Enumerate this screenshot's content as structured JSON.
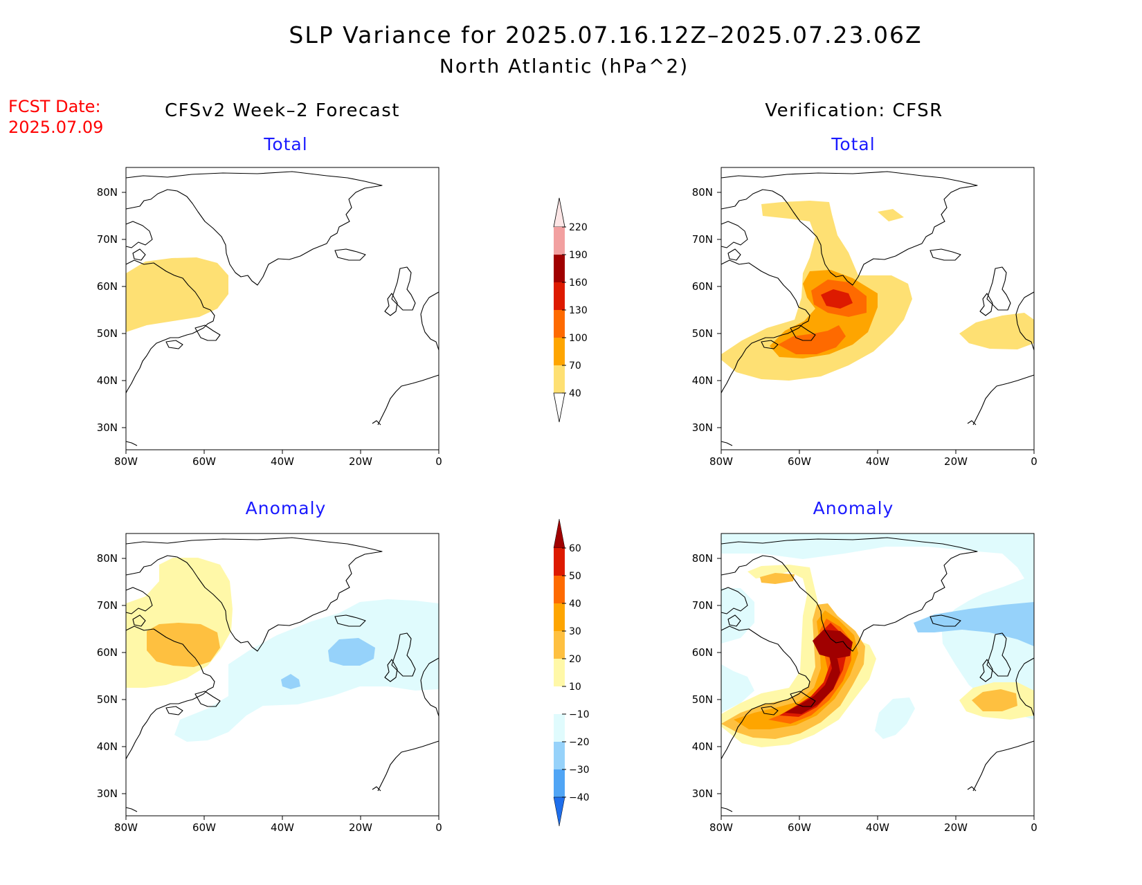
{
  "title_line1": "SLP Variance for 2025.07.16.12Z–2025.07.23.06Z",
  "title_line2": "North Atlantic (hPa^2)",
  "fcst_date_label": "FCST Date:",
  "fcst_date_value": "2025.07.09",
  "column_titles": {
    "left": "CFSv2 Week–2 Forecast",
    "right": "Verification: CFSR"
  },
  "panel_titles": {
    "total": "Total",
    "anomaly": "Anomaly"
  },
  "colors": {
    "title": "#000000",
    "fcst_date": "#ff0000",
    "panel_subtitle": "#1a1aff"
  },
  "axes": {
    "lat_labels": [
      "80N",
      "70N",
      "60N",
      "50N",
      "40N",
      "30N"
    ],
    "lon_labels": [
      "80W",
      "60W",
      "40W",
      "20W",
      "0"
    ],
    "lat_range": [
      25,
      85
    ],
    "lon_range": [
      -80,
      0
    ]
  },
  "total_colorbar": {
    "labels": [
      "220",
      "190",
      "160",
      "130",
      "100",
      "70",
      "40"
    ],
    "colors": [
      "#fde6e6",
      "#f2a0a0",
      "#a00000",
      "#dd1a00",
      "#fe6a00",
      "#fea500",
      "#fee073"
    ]
  },
  "anomaly_colorbar": {
    "labels": [
      "60",
      "50",
      "40",
      "30",
      "20",
      "10",
      "−10",
      "−20",
      "−30",
      "−40"
    ],
    "colors": [
      "#a00000",
      "#dd1a00",
      "#fe6a00",
      "#fea500",
      "#fec040",
      "#fff8a8",
      "#ffffff",
      "#e0fbfd",
      "#96d2fa",
      "#50a5f5",
      "#1e6eeb"
    ]
  },
  "chart_data": [
    {
      "type": "heatmap",
      "panel": "CFSv2 Week-2 Forecast – Total",
      "features": [
        {
          "level": "40–70",
          "region": "Labrador Sea / Labrador, ~52–65N, 55–80W"
        }
      ]
    },
    {
      "type": "heatmap",
      "panel": "Verification: CFSR – Total",
      "features": [
        {
          "level": "40–70",
          "region": "Davis Strait to Newfoundland, band 40–78N"
        },
        {
          "level": "70–100",
          "region": "Labrador Sea and south of Newfoundland"
        },
        {
          "level": "100–130",
          "region": "~57N 52W and ~46N 50W"
        },
        {
          "level": "130–160",
          "region": "~57N 52W"
        },
        {
          "level": "40–70",
          "region": "west of Ireland / UK, ~48–53N, 0–25W"
        }
      ]
    },
    {
      "type": "heatmap",
      "panel": "CFSv2 Week-2 Forecast – Anomaly",
      "features": [
        {
          "level": "10–20",
          "region": "Baffin Bay to Labrador, 52–80N"
        },
        {
          "level": "20–30",
          "region": "~60N 65W"
        },
        {
          "level": "−10–−20",
          "region": "band across North Atlantic 43–67N, 0–55W"
        },
        {
          "level": "−20–−30",
          "region": "~59N 22W and ~54N 38W"
        }
      ]
    },
    {
      "type": "heatmap",
      "panel": "Verification: CFSR – Anomaly",
      "features": [
        {
          "level": "50–60+",
          "region": "~58N 52W and ~46N 50W"
        },
        {
          "level": "10–50",
          "region": "Davis Strait to Gulf of St Lawrence"
        },
        {
          "level": "20–40",
          "region": "west of France / UK, ~49N 8W"
        },
        {
          "level": "−10–−30",
          "region": "Iceland / Greenland Sea, ~63–70N, 0–40W"
        }
      ]
    }
  ]
}
